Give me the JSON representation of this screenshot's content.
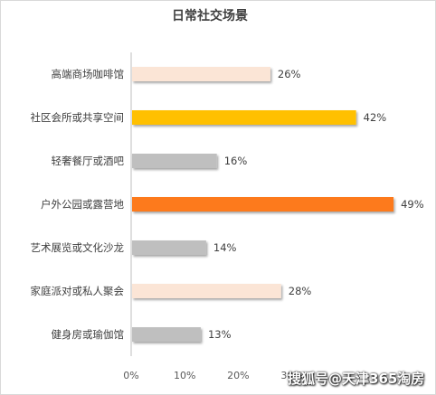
{
  "chart_data": {
    "type": "bar",
    "orientation": "horizontal",
    "title": "日常社交场景",
    "categories": [
      "高端商场咖啡馆",
      "社区会所或共享空间",
      "轻奢餐厅或酒吧",
      "户外公园或露营地",
      "艺术展览或文化沙龙",
      "家庭派对或私人聚会",
      "健身房或瑜伽馆"
    ],
    "values": [
      26,
      42,
      16,
      49,
      14,
      28,
      13
    ],
    "data_labels": [
      "26%",
      "42%",
      "16%",
      "49%",
      "14%",
      "28%",
      "13%"
    ],
    "bar_colors": [
      "#fbe5d6",
      "#ffc000",
      "#bfbfbf",
      "#fd7a1c",
      "#bfbfbf",
      "#fbe5d6",
      "#bfbfbf"
    ],
    "x_ticks": [
      "0%",
      "10%",
      "20%",
      "30%"
    ],
    "xlim": [
      0,
      50
    ],
    "legend": "none",
    "grid": false
  },
  "watermark": "搜狐号@天津365淘房"
}
